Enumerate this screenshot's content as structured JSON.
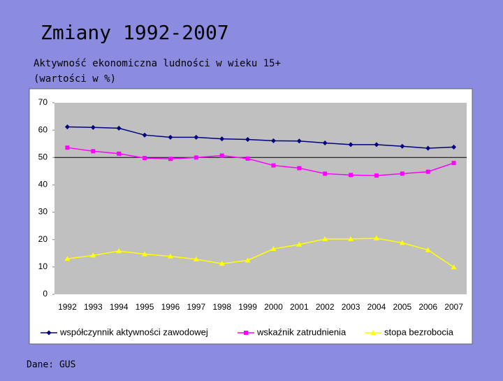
{
  "chart_data": {
    "type": "line",
    "title": "Zmiany 1992-2007",
    "subtitle": [
      "Aktywność ekonomiczna ludności w wieku 15+",
      "(wartości w %)"
    ],
    "source": "Dane: GUS",
    "categories": [
      "1992",
      "1993",
      "1994",
      "1995",
      "1996",
      "1997",
      "1998",
      "1999",
      "2000",
      "2001",
      "2002",
      "2003",
      "2004",
      "2005",
      "2006",
      "2007"
    ],
    "series": [
      {
        "name": "współczynnik aktywności zawodowej",
        "color": "#000080",
        "marker": "diamond",
        "values": [
          61.2,
          61.0,
          60.7,
          58.2,
          57.4,
          57.4,
          56.8,
          56.6,
          56.1,
          56.0,
          55.3,
          54.7,
          54.7,
          54.1,
          53.4,
          53.8
        ]
      },
      {
        "name": "wskaźnik zatrudnienia",
        "color": "#ff00ff",
        "marker": "square",
        "values": [
          53.6,
          52.3,
          51.4,
          49.8,
          49.5,
          50.0,
          50.7,
          49.6,
          47.1,
          46.1,
          44.1,
          43.6,
          43.4,
          44.1,
          44.8,
          48.0
        ]
      },
      {
        "name": "stopa bezrobocia",
        "color": "#ffff00",
        "marker": "triangle",
        "values": [
          13.0,
          14.2,
          15.8,
          14.7,
          13.9,
          12.8,
          11.2,
          12.4,
          16.6,
          18.2,
          20.2,
          20.2,
          20.5,
          18.8,
          16.2,
          9.9
        ]
      }
    ],
    "ylim": [
      0,
      70
    ],
    "yticks": [
      0,
      10,
      20,
      30,
      40,
      50,
      60,
      70
    ],
    "hline": 50,
    "legend": "bottom"
  }
}
